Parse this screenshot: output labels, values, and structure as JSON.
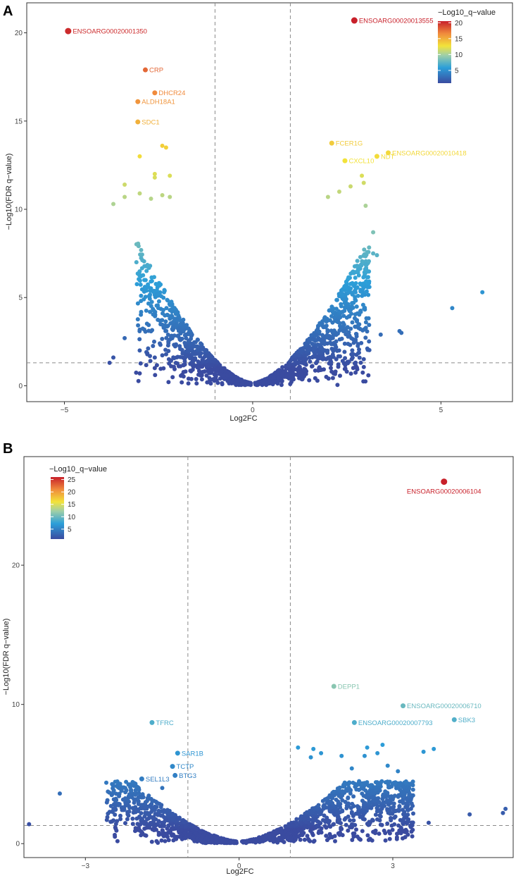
{
  "figure": {
    "panel_labels": [
      "A",
      "B"
    ]
  },
  "chart_data": [
    {
      "panel": "A",
      "type": "scatter",
      "title": "",
      "xlabel": "Log2FC",
      "ylabel": "−Log10(FDR q−value)",
      "xlim": [
        -6.0,
        6.9
      ],
      "ylim": [
        -0.9,
        21.7
      ],
      "xticks": [
        -5,
        0,
        5
      ],
      "yticks": [
        0,
        5,
        10,
        15,
        20
      ],
      "xtick_labels": [
        "−5",
        "0",
        "5"
      ],
      "ytick_labels": [
        "0",
        "5",
        "10",
        "15",
        "20"
      ],
      "vlines": [
        -1,
        1
      ],
      "hline": 1.3,
      "color_legend": {
        "title": "−Log10_q−value",
        "min": 1,
        "max": 20.5,
        "ticks": [
          5,
          10,
          15,
          20
        ],
        "tick_labels": [
          "5",
          "10",
          "15",
          "20"
        ],
        "position": "top-right"
      },
      "grid": false,
      "labeled_points": [
        {
          "label": "ENSOARG00020001350",
          "x": -4.9,
          "y": 20.1,
          "size": "large"
        },
        {
          "label": "ENSOARG00020013555",
          "x": 2.7,
          "y": 20.7,
          "size": "large"
        },
        {
          "label": "CRP",
          "x": -2.85,
          "y": 17.9
        },
        {
          "label": "DHCR24",
          "x": -2.6,
          "y": 16.6
        },
        {
          "label": "ALDH18A1",
          "x": -3.05,
          "y": 16.1
        },
        {
          "label": "SDC1",
          "x": -3.05,
          "y": 14.95
        },
        {
          "label": "FCER1G",
          "x": 2.1,
          "y": 13.75
        },
        {
          "label": "CXCL10",
          "x": 2.45,
          "y": 12.75
        },
        {
          "label": "NDT",
          "x": 3.3,
          "y": 13.0
        },
        {
          "label": "ENSOARG00020010418",
          "x": 3.6,
          "y": 13.2
        }
      ],
      "extra_points": [
        {
          "x": -2.4,
          "y": 13.6
        },
        {
          "x": -2.3,
          "y": 13.5
        },
        {
          "x": -3.0,
          "y": 13.0
        },
        {
          "x": -2.6,
          "y": 12.0
        },
        {
          "x": -2.6,
          "y": 11.8
        },
        {
          "x": -2.2,
          "y": 11.9
        },
        {
          "x": -3.4,
          "y": 11.4
        },
        {
          "x": -3.7,
          "y": 10.3
        },
        {
          "x": -3.4,
          "y": 10.7
        },
        {
          "x": -3.0,
          "y": 10.9
        },
        {
          "x": -2.7,
          "y": 10.6
        },
        {
          "x": -2.4,
          "y": 10.8
        },
        {
          "x": -2.2,
          "y": 10.7
        },
        {
          "x": 2.0,
          "y": 10.7
        },
        {
          "x": 2.3,
          "y": 11.0
        },
        {
          "x": 2.6,
          "y": 11.3
        },
        {
          "x": 2.9,
          "y": 11.9
        },
        {
          "x": 2.95,
          "y": 11.5
        },
        {
          "x": 3.0,
          "y": 10.2
        },
        {
          "x": 3.2,
          "y": 8.7
        },
        {
          "x": 3.2,
          "y": 7.5
        },
        {
          "x": 3.3,
          "y": 7.4
        },
        {
          "x": 3.1,
          "y": 5.6
        },
        {
          "x": 2.6,
          "y": 5.3
        },
        {
          "x": 6.1,
          "y": 5.3
        },
        {
          "x": 5.3,
          "y": 4.4
        },
        {
          "x": 3.9,
          "y": 3.1
        },
        {
          "x": 3.95,
          "y": 3.0
        },
        {
          "x": 3.4,
          "y": 2.9
        },
        {
          "x": -3.4,
          "y": 2.7
        },
        {
          "x": -3.7,
          "y": 1.6
        },
        {
          "x": -3.8,
          "y": 1.3
        },
        {
          "x": -3.0,
          "y": 2.0
        },
        {
          "x": -3.0,
          "y": 0.7
        },
        {
          "x": -2.6,
          "y": 1.6
        },
        {
          "x": -2.6,
          "y": 1.0
        },
        {
          "x": 2.5,
          "y": 0.8
        },
        {
          "x": 2.2,
          "y": 0.8
        },
        {
          "x": 2.5,
          "y": 1.3
        }
      ],
      "cloud": {
        "left_x_range": [
          -3.1,
          -0.05
        ],
        "right_x_range": [
          0.05,
          3.1
        ],
        "y_range": [
          0.05,
          9.0
        ],
        "n_left": 700,
        "n_right": 800
      }
    },
    {
      "panel": "B",
      "type": "scatter",
      "title": "",
      "xlabel": "Log2FC",
      "ylabel": "−Log10(FDR q−value)",
      "xlim": [
        -4.2,
        5.35
      ],
      "ylim": [
        -1.0,
        27.8
      ],
      "xticks": [
        -3,
        0,
        3
      ],
      "yticks": [
        0,
        10,
        20
      ],
      "xtick_labels": [
        "−3",
        "0",
        "3"
      ],
      "ytick_labels": [
        "0",
        "10",
        "20"
      ],
      "vlines": [
        -1,
        1
      ],
      "hline": 1.3,
      "color_legend": {
        "title": "−Log10_q−value",
        "min": 1,
        "max": 26,
        "ticks": [
          5,
          10,
          15,
          20,
          25
        ],
        "tick_labels": [
          "5",
          "10",
          "15",
          "20",
          "25"
        ],
        "position": "top-left"
      },
      "grid": false,
      "labeled_points": [
        {
          "label": "ENSOARG00020006104",
          "x": 4.0,
          "y": 26.0,
          "size": "large"
        },
        {
          "label": "DEPP1",
          "x": 1.85,
          "y": 11.3
        },
        {
          "label": "ENSOARG00020006710",
          "x": 3.2,
          "y": 9.9
        },
        {
          "label": "SBK3",
          "x": 4.2,
          "y": 8.9
        },
        {
          "label": "ENSOARG00020007793",
          "x": 2.25,
          "y": 8.7
        },
        {
          "label": "TFRC",
          "x": -1.7,
          "y": 8.7
        },
        {
          "label": "SAR1B",
          "x": -1.2,
          "y": 6.5
        },
        {
          "label": "TCTP",
          "x": -1.3,
          "y": 5.55
        },
        {
          "label": "BTG3",
          "x": -1.25,
          "y": 4.9
        },
        {
          "label": "SEL1L3",
          "x": -1.9,
          "y": 4.65
        }
      ],
      "extra_points": [
        {
          "x": 1.15,
          "y": 6.9
        },
        {
          "x": 1.45,
          "y": 6.8
        },
        {
          "x": 1.4,
          "y": 6.2
        },
        {
          "x": 1.6,
          "y": 6.5
        },
        {
          "x": 2.0,
          "y": 6.3
        },
        {
          "x": 2.2,
          "y": 5.4
        },
        {
          "x": 2.45,
          "y": 6.3
        },
        {
          "x": 2.5,
          "y": 6.9
        },
        {
          "x": 2.7,
          "y": 6.5
        },
        {
          "x": 2.8,
          "y": 7.1
        },
        {
          "x": 2.9,
          "y": 5.6
        },
        {
          "x": 3.1,
          "y": 5.2
        },
        {
          "x": 3.6,
          "y": 6.6
        },
        {
          "x": 3.8,
          "y": 6.8
        },
        {
          "x": -3.5,
          "y": 3.6
        },
        {
          "x": -4.1,
          "y": 1.4
        },
        {
          "x": -2.5,
          "y": 2.7
        },
        {
          "x": -1.5,
          "y": 4.0
        },
        {
          "x": 4.5,
          "y": 2.1
        },
        {
          "x": 5.15,
          "y": 2.2
        },
        {
          "x": 5.2,
          "y": 2.5
        },
        {
          "x": 3.3,
          "y": 1.7
        },
        {
          "x": 3.7,
          "y": 1.5
        }
      ],
      "cloud": {
        "left_x_range": [
          -2.6,
          -0.05
        ],
        "right_x_range": [
          0.05,
          3.4
        ],
        "y_range": [
          0.05,
          4.5
        ],
        "n_left": 700,
        "n_right": 900
      }
    }
  ]
}
